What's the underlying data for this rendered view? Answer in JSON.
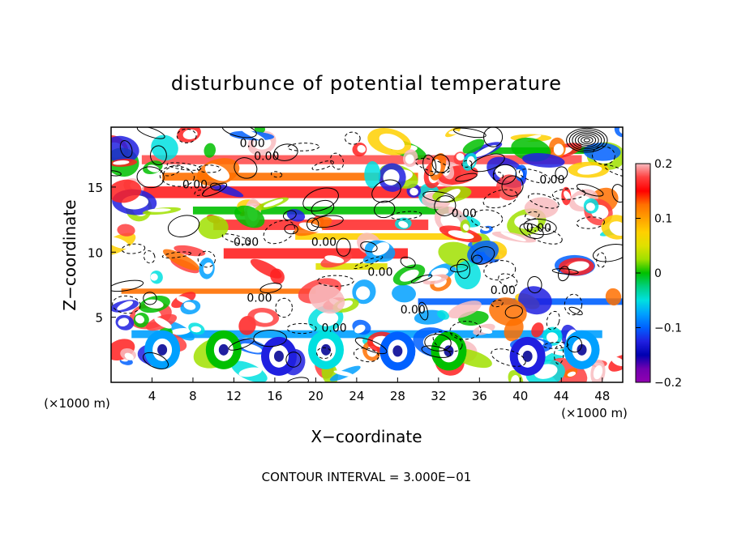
{
  "chart_data": {
    "type": "heatmap",
    "title": "disturbunce of potential temperature",
    "xlabel": "X−coordinate",
    "ylabel": "Z−coordinate",
    "x_unit_left": "(×1000 m)",
    "x_unit_right": "(×1000 m)",
    "xticks": [
      "4",
      "8",
      "12",
      "16",
      "20",
      "24",
      "28",
      "32",
      "36",
      "40",
      "44",
      "48"
    ],
    "yticks": [
      "5",
      "10",
      "15"
    ],
    "xlim": [
      0,
      50
    ],
    "ylim": [
      0,
      19.6
    ],
    "colorbar": {
      "ticks": [
        "0.2",
        "0.1",
        "0",
        "−0.1",
        "−0.2"
      ],
      "range": [
        -0.2,
        0.2
      ],
      "colors": [
        "#f8bcc0",
        "#ff4040",
        "#ff0000",
        "#ff7000",
        "#ffa000",
        "#ffd000",
        "#e0e000",
        "#a0e000",
        "#00c000",
        "#00d080",
        "#00e0e0",
        "#00a0ff",
        "#0060ff",
        "#2020e0",
        "#0000b0",
        "#7000b0",
        "#9000b0"
      ]
    },
    "contour_labels": [
      {
        "text": "0.00",
        "x": 13.8,
        "y": 18.4
      },
      {
        "text": "0.00",
        "x": 15.2,
        "y": 17.4
      },
      {
        "text": "0.00",
        "x": 8.2,
        "y": 15.2
      },
      {
        "text": "0.00",
        "x": 43.1,
        "y": 15.6
      },
      {
        "text": "0.00",
        "x": 34.5,
        "y": 13.0
      },
      {
        "text": "0.00",
        "x": 41.8,
        "y": 11.9
      },
      {
        "text": "0.00",
        "x": 13.2,
        "y": 10.8
      },
      {
        "text": "0.00",
        "x": 20.8,
        "y": 10.8
      },
      {
        "text": "0.00",
        "x": 26.3,
        "y": 8.5
      },
      {
        "text": "0.00",
        "x": 38.3,
        "y": 7.1
      },
      {
        "text": "0.00",
        "x": 14.5,
        "y": 6.5
      },
      {
        "text": "0.00",
        "x": 29.5,
        "y": 5.6
      },
      {
        "text": "0.00",
        "x": 21.8,
        "y": 4.2
      }
    ],
    "footer": "CONTOUR INTERVAL = 3.000E−01"
  }
}
